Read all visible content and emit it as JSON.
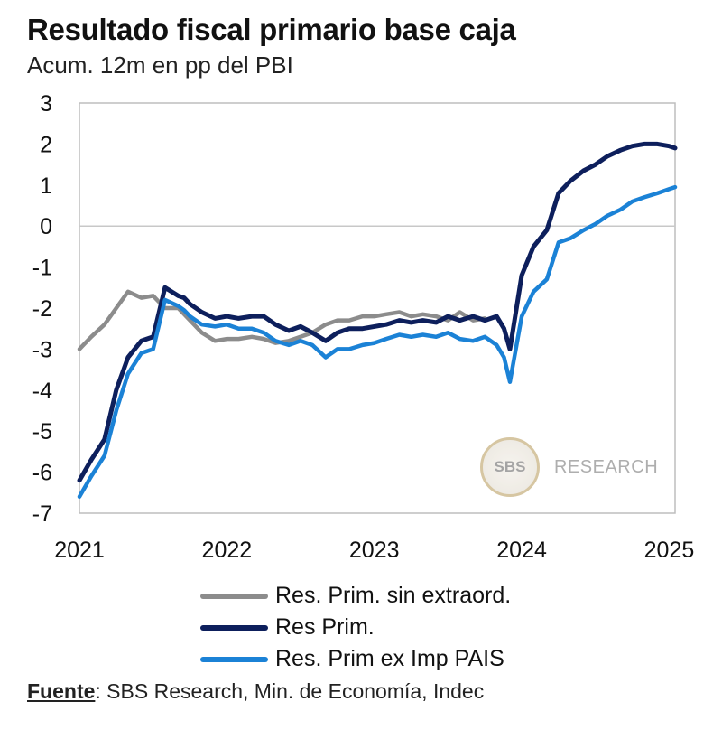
{
  "header": {
    "title": "Resultado fiscal primario base caja",
    "subtitle": "Acum. 12m en pp del PBI"
  },
  "watermark": {
    "logo_text": "SBS",
    "text": "RESEARCH"
  },
  "source": {
    "label": "Fuente",
    "text": ": SBS Research, Min. de Economía, Indec"
  },
  "colors": {
    "gray": "#8c8c8c",
    "navy": "#0d1f5c",
    "blue": "#1b82d6",
    "zero_line": "#c8c8c8",
    "frame": "#bdbdbd"
  },
  "chart_data": {
    "type": "line",
    "title": "Resultado fiscal primario base caja",
    "subtitle": "Acum. 12m en pp del PBI",
    "xlabel": "",
    "ylabel": "",
    "xlim": [
      2021.0,
      2025.04
    ],
    "ylim": [
      -7,
      3
    ],
    "yticks": [
      3,
      2,
      1,
      0,
      -1,
      -2,
      -3,
      -4,
      -5,
      -6,
      -7
    ],
    "xticks": [
      "2021",
      "2022",
      "2023",
      "2024",
      "2025"
    ],
    "legend_position": "bottom",
    "series": [
      {
        "name": "Res. Prim. sin extraord.",
        "color": "#8c8c8c",
        "x": [
          2021.0,
          2021.08,
          2021.17,
          2021.25,
          2021.33,
          2021.42,
          2021.5,
          2021.58,
          2021.67,
          2021.75,
          2021.83,
          2021.92,
          2022.0,
          2022.08,
          2022.17,
          2022.25,
          2022.33,
          2022.42,
          2022.5,
          2022.58,
          2022.67,
          2022.75,
          2022.83,
          2022.92,
          2023.0,
          2023.08,
          2023.17,
          2023.25,
          2023.33,
          2023.42,
          2023.5,
          2023.58,
          2023.67,
          2023.75
        ],
        "values": [
          -3.0,
          -2.7,
          -2.4,
          -2.0,
          -1.6,
          -1.75,
          -1.7,
          -2.0,
          -2.0,
          -2.3,
          -2.6,
          -2.8,
          -2.75,
          -2.75,
          -2.7,
          -2.75,
          -2.85,
          -2.8,
          -2.7,
          -2.6,
          -2.4,
          -2.3,
          -2.3,
          -2.2,
          -2.2,
          -2.15,
          -2.1,
          -2.2,
          -2.15,
          -2.2,
          -2.3,
          -2.1,
          -2.3,
          -2.25
        ]
      },
      {
        "name": "Res Prim.",
        "color": "#0d1f5c",
        "x": [
          2021.0,
          2021.08,
          2021.17,
          2021.25,
          2021.33,
          2021.42,
          2021.5,
          2021.58,
          2021.67,
          2021.71,
          2021.75,
          2021.83,
          2021.92,
          2022.0,
          2022.08,
          2022.17,
          2022.25,
          2022.33,
          2022.42,
          2022.5,
          2022.58,
          2022.67,
          2022.75,
          2022.83,
          2022.92,
          2023.0,
          2023.08,
          2023.17,
          2023.25,
          2023.33,
          2023.42,
          2023.5,
          2023.58,
          2023.67,
          2023.75,
          2023.83,
          2023.88,
          2023.92,
          2024.0,
          2024.08,
          2024.17,
          2024.25,
          2024.33,
          2024.42,
          2024.5,
          2024.58,
          2024.67,
          2024.75,
          2024.83,
          2024.92,
          2025.0,
          2025.04
        ],
        "values": [
          -6.2,
          -5.7,
          -5.2,
          -4.0,
          -3.2,
          -2.8,
          -2.7,
          -1.5,
          -1.7,
          -1.75,
          -1.9,
          -2.1,
          -2.25,
          -2.2,
          -2.25,
          -2.2,
          -2.2,
          -2.4,
          -2.55,
          -2.45,
          -2.6,
          -2.8,
          -2.6,
          -2.5,
          -2.5,
          -2.45,
          -2.4,
          -2.3,
          -2.35,
          -2.3,
          -2.35,
          -2.2,
          -2.3,
          -2.2,
          -2.3,
          -2.2,
          -2.5,
          -3.0,
          -1.2,
          -0.5,
          -0.1,
          0.8,
          1.1,
          1.35,
          1.5,
          1.7,
          1.85,
          1.95,
          2.0,
          2.0,
          1.95,
          1.9
        ]
      },
      {
        "name": "Res. Prim ex Imp PAIS",
        "color": "#1b82d6",
        "x": [
          2021.0,
          2021.08,
          2021.17,
          2021.25,
          2021.33,
          2021.42,
          2021.5,
          2021.58,
          2021.67,
          2021.71,
          2021.75,
          2021.83,
          2021.92,
          2022.0,
          2022.08,
          2022.17,
          2022.25,
          2022.33,
          2022.42,
          2022.5,
          2022.58,
          2022.67,
          2022.75,
          2022.83,
          2022.92,
          2023.0,
          2023.08,
          2023.17,
          2023.25,
          2023.33,
          2023.42,
          2023.5,
          2023.58,
          2023.67,
          2023.75,
          2023.83,
          2023.88,
          2023.92,
          2024.0,
          2024.08,
          2024.17,
          2024.25,
          2024.33,
          2024.42,
          2024.5,
          2024.58,
          2024.67,
          2024.75,
          2024.83,
          2024.92,
          2025.0,
          2025.04
        ],
        "values": [
          -6.6,
          -6.1,
          -5.6,
          -4.5,
          -3.6,
          -3.1,
          -3.0,
          -1.8,
          -1.95,
          -2.05,
          -2.2,
          -2.4,
          -2.45,
          -2.4,
          -2.5,
          -2.5,
          -2.6,
          -2.8,
          -2.9,
          -2.8,
          -2.9,
          -3.2,
          -3.0,
          -3.0,
          -2.9,
          -2.85,
          -2.75,
          -2.65,
          -2.7,
          -2.65,
          -2.7,
          -2.6,
          -2.75,
          -2.8,
          -2.7,
          -2.9,
          -3.2,
          -3.8,
          -2.2,
          -1.6,
          -1.3,
          -0.4,
          -0.3,
          -0.1,
          0.05,
          0.25,
          0.4,
          0.6,
          0.7,
          0.8,
          0.9,
          0.95
        ]
      }
    ]
  }
}
